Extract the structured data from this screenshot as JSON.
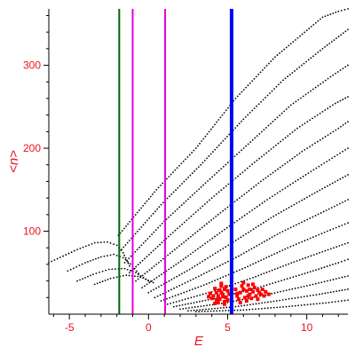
{
  "chart_data": {
    "type": "scatter",
    "xlabel": "E",
    "ylabel": "<n>",
    "xlim": [
      -6.3,
      12.6
    ],
    "ylim": [
      0,
      368
    ],
    "x_ticks": [
      {
        "value": -5,
        "label": "-5"
      },
      {
        "value": 0,
        "label": "0"
      },
      {
        "value": 5,
        "label": "5"
      },
      {
        "value": 10,
        "label": "10"
      }
    ],
    "y_ticks": [
      {
        "value": 100,
        "label": "100"
      },
      {
        "value": 200,
        "label": "200"
      },
      {
        "value": 300,
        "label": "300"
      }
    ],
    "colors": {
      "text": "#e8141e",
      "axis": "#000000",
      "points": "#000000",
      "cluster": "#ff0000"
    },
    "vertical_lines": [
      {
        "x": -1.85,
        "color": "#006400",
        "width": 2
      },
      {
        "x": -1.0,
        "color": "#e000e0",
        "width": 2
      },
      {
        "x": 1.05,
        "color": "#e000e0",
        "width": 2
      },
      {
        "x": 5.25,
        "color": "#0000ff",
        "width": 4
      }
    ],
    "curves": [
      {
        "points": [
          [
            -6.3,
            62
          ],
          [
            -4.5,
            78
          ],
          [
            -3.4,
            86
          ],
          [
            -2.6,
            87
          ],
          [
            -2.0,
            83
          ],
          [
            -1.6,
            74
          ],
          [
            -1.2,
            58
          ]
        ]
      },
      {
        "points": [
          [
            -5.1,
            52
          ],
          [
            -4.0,
            62
          ],
          [
            -3.0,
            69
          ],
          [
            -2.2,
            72
          ],
          [
            -1.6,
            68
          ],
          [
            -1.0,
            58
          ],
          [
            -0.5,
            46
          ]
        ]
      },
      {
        "points": [
          [
            -4.5,
            40
          ],
          [
            -3.5,
            48
          ],
          [
            -2.5,
            54
          ],
          [
            -1.5,
            55
          ],
          [
            -0.8,
            50
          ],
          [
            0.0,
            40
          ]
        ]
      },
      {
        "points": [
          [
            -3.4,
            36
          ],
          [
            -2.4,
            43
          ],
          [
            -1.4,
            47
          ],
          [
            -0.5,
            45
          ],
          [
            0.3,
            38
          ]
        ]
      },
      {
        "points": [
          [
            -1.9,
            95
          ],
          [
            0.5,
            150
          ],
          [
            3.0,
            200
          ],
          [
            5.5,
            260
          ],
          [
            8.0,
            310
          ],
          [
            11.0,
            358
          ],
          [
            12.0,
            365
          ],
          [
            12.6,
            368
          ]
        ]
      },
      {
        "points": [
          [
            -1.7,
            78
          ],
          [
            0.8,
            132
          ],
          [
            3.3,
            180
          ],
          [
            6.0,
            235
          ],
          [
            8.5,
            282
          ],
          [
            11.0,
            320
          ],
          [
            12.6,
            343
          ]
        ]
      },
      {
        "points": [
          [
            -1.5,
            62
          ],
          [
            1.0,
            112
          ],
          [
            3.6,
            158
          ],
          [
            6.3,
            205
          ],
          [
            9.0,
            252
          ],
          [
            11.5,
            286
          ],
          [
            12.6,
            300
          ]
        ]
      },
      {
        "points": [
          [
            -1.2,
            50
          ],
          [
            1.4,
            96
          ],
          [
            4.0,
            140
          ],
          [
            6.7,
            183
          ],
          [
            9.4,
            224
          ],
          [
            11.8,
            254
          ],
          [
            12.6,
            262
          ]
        ]
      },
      {
        "points": [
          [
            -0.8,
            40
          ],
          [
            1.8,
            80
          ],
          [
            4.4,
            120
          ],
          [
            7.1,
            160
          ],
          [
            9.7,
            196
          ],
          [
            12.0,
            224
          ],
          [
            12.6,
            232
          ]
        ]
      },
      {
        "points": [
          [
            -0.4,
            32
          ],
          [
            2.2,
            66
          ],
          [
            4.8,
            102
          ],
          [
            7.5,
            138
          ],
          [
            10.1,
            170
          ],
          [
            12.6,
            200
          ]
        ]
      },
      {
        "points": [
          [
            0.0,
            26
          ],
          [
            2.6,
            54
          ],
          [
            5.2,
            85
          ],
          [
            7.9,
            118
          ],
          [
            10.5,
            146
          ],
          [
            12.6,
            168
          ]
        ]
      },
      {
        "points": [
          [
            0.4,
            20
          ],
          [
            3.0,
            44
          ],
          [
            5.7,
            70
          ],
          [
            8.3,
            98
          ],
          [
            10.9,
            122
          ],
          [
            12.6,
            138
          ]
        ]
      },
      {
        "points": [
          [
            0.8,
            16
          ],
          [
            3.5,
            35
          ],
          [
            6.1,
            56
          ],
          [
            8.8,
            80
          ],
          [
            11.3,
            100
          ],
          [
            12.6,
            110
          ]
        ]
      },
      {
        "points": [
          [
            1.2,
            12
          ],
          [
            4.0,
            27
          ],
          [
            6.6,
            44
          ],
          [
            9.2,
            63
          ],
          [
            11.7,
            80
          ],
          [
            12.6,
            86
          ]
        ]
      },
      {
        "points": [
          [
            1.6,
            9
          ],
          [
            4.5,
            20
          ],
          [
            7.1,
            33
          ],
          [
            9.7,
            48
          ],
          [
            12.0,
            62
          ],
          [
            12.6,
            66
          ]
        ]
      },
      {
        "points": [
          [
            2.0,
            6
          ],
          [
            5.0,
            14
          ],
          [
            7.6,
            24
          ],
          [
            10.2,
            35
          ],
          [
            12.6,
            46
          ]
        ]
      },
      {
        "points": [
          [
            2.5,
            4
          ],
          [
            5.5,
            9
          ],
          [
            8.1,
            16
          ],
          [
            10.8,
            24
          ],
          [
            12.6,
            30
          ]
        ]
      },
      {
        "points": [
          [
            3.0,
            3
          ],
          [
            6.0,
            5
          ],
          [
            8.7,
            9
          ],
          [
            11.4,
            14
          ],
          [
            12.6,
            17
          ]
        ]
      }
    ],
    "clusters": [
      {
        "color": "#ff0000",
        "points": [
          [
            4.4,
            22
          ],
          [
            4.6,
            26
          ],
          [
            4.8,
            30
          ],
          [
            4.9,
            20
          ],
          [
            4.5,
            18
          ],
          [
            4.7,
            24
          ],
          [
            5.0,
            28
          ],
          [
            4.3,
            26
          ],
          [
            4.1,
            22
          ],
          [
            4.0,
            19
          ],
          [
            4.2,
            31
          ],
          [
            4.6,
            34
          ],
          [
            4.8,
            15
          ],
          [
            5.0,
            17
          ],
          [
            4.4,
            14
          ],
          [
            3.9,
            25
          ],
          [
            4.7,
            21
          ],
          [
            4.9,
            33
          ],
          [
            4.5,
            29
          ],
          [
            5.1,
            24
          ],
          [
            4.3,
            17
          ],
          [
            4.6,
            37
          ],
          [
            4.2,
            13
          ],
          [
            3.8,
            21
          ],
          [
            4.8,
            12
          ],
          [
            5.6,
            22
          ],
          [
            5.8,
            26
          ],
          [
            6.0,
            30
          ],
          [
            6.2,
            28
          ],
          [
            6.4,
            24
          ],
          [
            6.6,
            27
          ],
          [
            6.8,
            22
          ],
          [
            7.0,
            26
          ],
          [
            7.2,
            30
          ],
          [
            5.7,
            18
          ],
          [
            5.9,
            34
          ],
          [
            6.1,
            20
          ],
          [
            6.3,
            35
          ],
          [
            6.5,
            19
          ],
          [
            6.7,
            32
          ],
          [
            6.9,
            18
          ],
          [
            7.1,
            24
          ],
          [
            7.3,
            22
          ],
          [
            5.5,
            30
          ],
          [
            6.0,
            38
          ],
          [
            6.2,
            16
          ],
          [
            6.4,
            30
          ],
          [
            5.8,
            14
          ],
          [
            7.4,
            27
          ],
          [
            7.6,
            24
          ],
          [
            6.6,
            36
          ],
          [
            5.6,
            25
          ],
          [
            6.9,
            29
          ],
          [
            6.3,
            22
          ]
        ]
      }
    ]
  }
}
